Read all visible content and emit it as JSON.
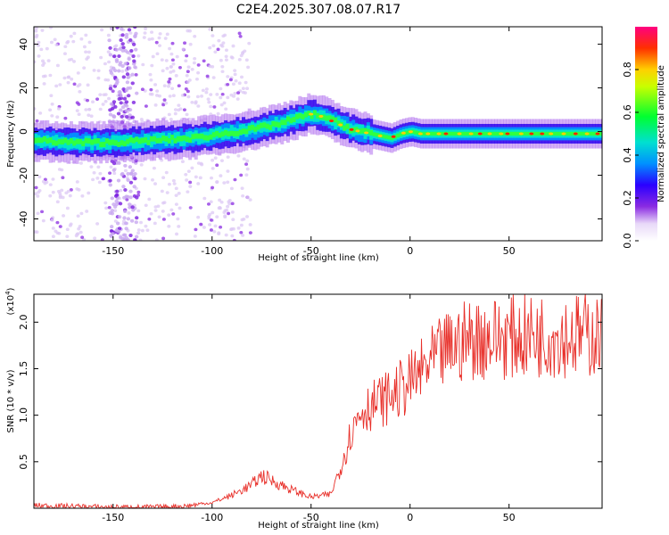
{
  "title": "C2E4.2025.307.08.07.R17",
  "chart_data": [
    {
      "type": "heatmap",
      "name": "spectrogram",
      "xlabel": "Height of straight line (km)",
      "ylabel": "Frequency (Hz)",
      "xlim": [
        -190,
        97
      ],
      "ylim": [
        -50,
        48
      ],
      "xticks": [
        -150,
        -100,
        -50,
        0,
        50
      ],
      "yticks": [
        -40,
        -20,
        0,
        20,
        40
      ],
      "ridge": {
        "x": [
          -190,
          -170,
          -150,
          -130,
          -110,
          -95,
          -80,
          -65,
          -55,
          -50,
          -45,
          -40,
          -35,
          -30,
          -25,
          -20,
          -15,
          -10,
          -5,
          0,
          5,
          10,
          20,
          30,
          50,
          70,
          97
        ],
        "freq": [
          -4,
          -5,
          -5,
          -4,
          -3,
          -1,
          1,
          4,
          7,
          8,
          7,
          5,
          3,
          1,
          0,
          -1,
          -2,
          -3,
          -1,
          0,
          -1,
          -1,
          -1,
          -1,
          -1,
          -1,
          -1
        ]
      },
      "colorbar": {
        "label": "Normalized spectral amplitude",
        "range": [
          0,
          1
        ],
        "ticks": [
          "0.0",
          "0.2",
          "0.4",
          "0.6",
          "0.8"
        ]
      }
    },
    {
      "type": "line",
      "name": "snr",
      "xlabel": "Height of straight line (km)",
      "ylabel": "SNR (10 * v/v)",
      "yscale_label": "(x10",
      "yscale_exp": "4",
      "yscale_close": ")",
      "xlim": [
        -190,
        97
      ],
      "ylim": [
        0,
        2.3
      ],
      "xticks": [
        -150,
        -100,
        -50,
        0,
        50
      ],
      "yticks": [
        "0.5",
        "1.0",
        "1.5",
        "2.0"
      ],
      "color": "#e8302a",
      "trend": {
        "x": [
          -190,
          -170,
          -150,
          -130,
          -115,
          -100,
          -90,
          -80,
          -75,
          -70,
          -60,
          -50,
          -40,
          -35,
          -30,
          -25,
          -20,
          -10,
          0,
          10,
          20,
          30,
          40,
          60,
          80,
          97
        ],
        "y": [
          0.03,
          0.02,
          0.01,
          0.01,
          0.02,
          0.06,
          0.14,
          0.25,
          0.35,
          0.3,
          0.2,
          0.12,
          0.15,
          0.45,
          0.8,
          1.05,
          1.1,
          1.2,
          1.35,
          1.55,
          1.72,
          1.82,
          1.83,
          1.85,
          1.86,
          1.86
        ]
      }
    }
  ]
}
